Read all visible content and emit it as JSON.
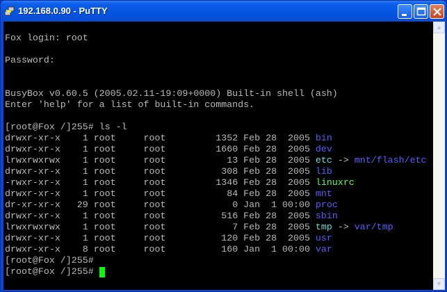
{
  "window": {
    "title": "192.168.0.90 - PuTTY"
  },
  "colors": {
    "text": "#bbbbbb",
    "directory": "#5c5cff",
    "symlink": "#66dddd",
    "executable": "#55ff55",
    "cursor": "#00ff00",
    "background": "#000000"
  },
  "terminal": {
    "intro": [
      "",
      "Fox login: root",
      "",
      "Password:",
      "",
      "",
      "BusyBox v0.60.5 (2005.02.11-19:09+0000) Built-in shell (ash)",
      "Enter 'help' for a list of built-in commands.",
      ""
    ],
    "prompt": "[root@Fox /]255#",
    "command": "ls -l",
    "listing": [
      {
        "perms": "drwxr-xr-x",
        "links": "1",
        "owner": "root",
        "group": "root",
        "size": "1352",
        "date": "Feb 28  2005",
        "name": "bin",
        "type": "directory"
      },
      {
        "perms": "drwxr-xr-x",
        "links": "1",
        "owner": "root",
        "group": "root",
        "size": "1660",
        "date": "Feb 28  2005",
        "name": "dev",
        "type": "directory"
      },
      {
        "perms": "lrwxrwxrwx",
        "links": "1",
        "owner": "root",
        "group": "root",
        "size": "13",
        "date": "Feb 28  2005",
        "name": "etc",
        "type": "symlink",
        "target": "mnt/flash/etc"
      },
      {
        "perms": "drwxr-xr-x",
        "links": "1",
        "owner": "root",
        "group": "root",
        "size": "308",
        "date": "Feb 28  2005",
        "name": "lib",
        "type": "directory"
      },
      {
        "perms": "-rwxr-xr-x",
        "links": "1",
        "owner": "root",
        "group": "root",
        "size": "1346",
        "date": "Feb 28  2005",
        "name": "linuxrc",
        "type": "executable"
      },
      {
        "perms": "drwxr-xr-x",
        "links": "1",
        "owner": "root",
        "group": "root",
        "size": "84",
        "date": "Feb 28  2005",
        "name": "mnt",
        "type": "directory"
      },
      {
        "perms": "dr-xr-xr-x",
        "links": "29",
        "owner": "root",
        "group": "root",
        "size": "0",
        "date": "Jan  1 00:00",
        "name": "proc",
        "type": "directory"
      },
      {
        "perms": "drwxr-xr-x",
        "links": "1",
        "owner": "root",
        "group": "root",
        "size": "516",
        "date": "Feb 28  2005",
        "name": "sbin",
        "type": "directory"
      },
      {
        "perms": "lrwxrwxrwx",
        "links": "1",
        "owner": "root",
        "group": "root",
        "size": "7",
        "date": "Feb 28  2005",
        "name": "tmp",
        "type": "symlink",
        "target": "var/tmp"
      },
      {
        "perms": "drwxr-xr-x",
        "links": "1",
        "owner": "root",
        "group": "root",
        "size": "120",
        "date": "Feb 28  2005",
        "name": "usr",
        "type": "directory"
      },
      {
        "perms": "drwxr-xr-x",
        "links": "8",
        "owner": "root",
        "group": "root",
        "size": "160",
        "date": "Jan  1 00:00",
        "name": "var",
        "type": "directory"
      }
    ],
    "arrow": "->"
  }
}
